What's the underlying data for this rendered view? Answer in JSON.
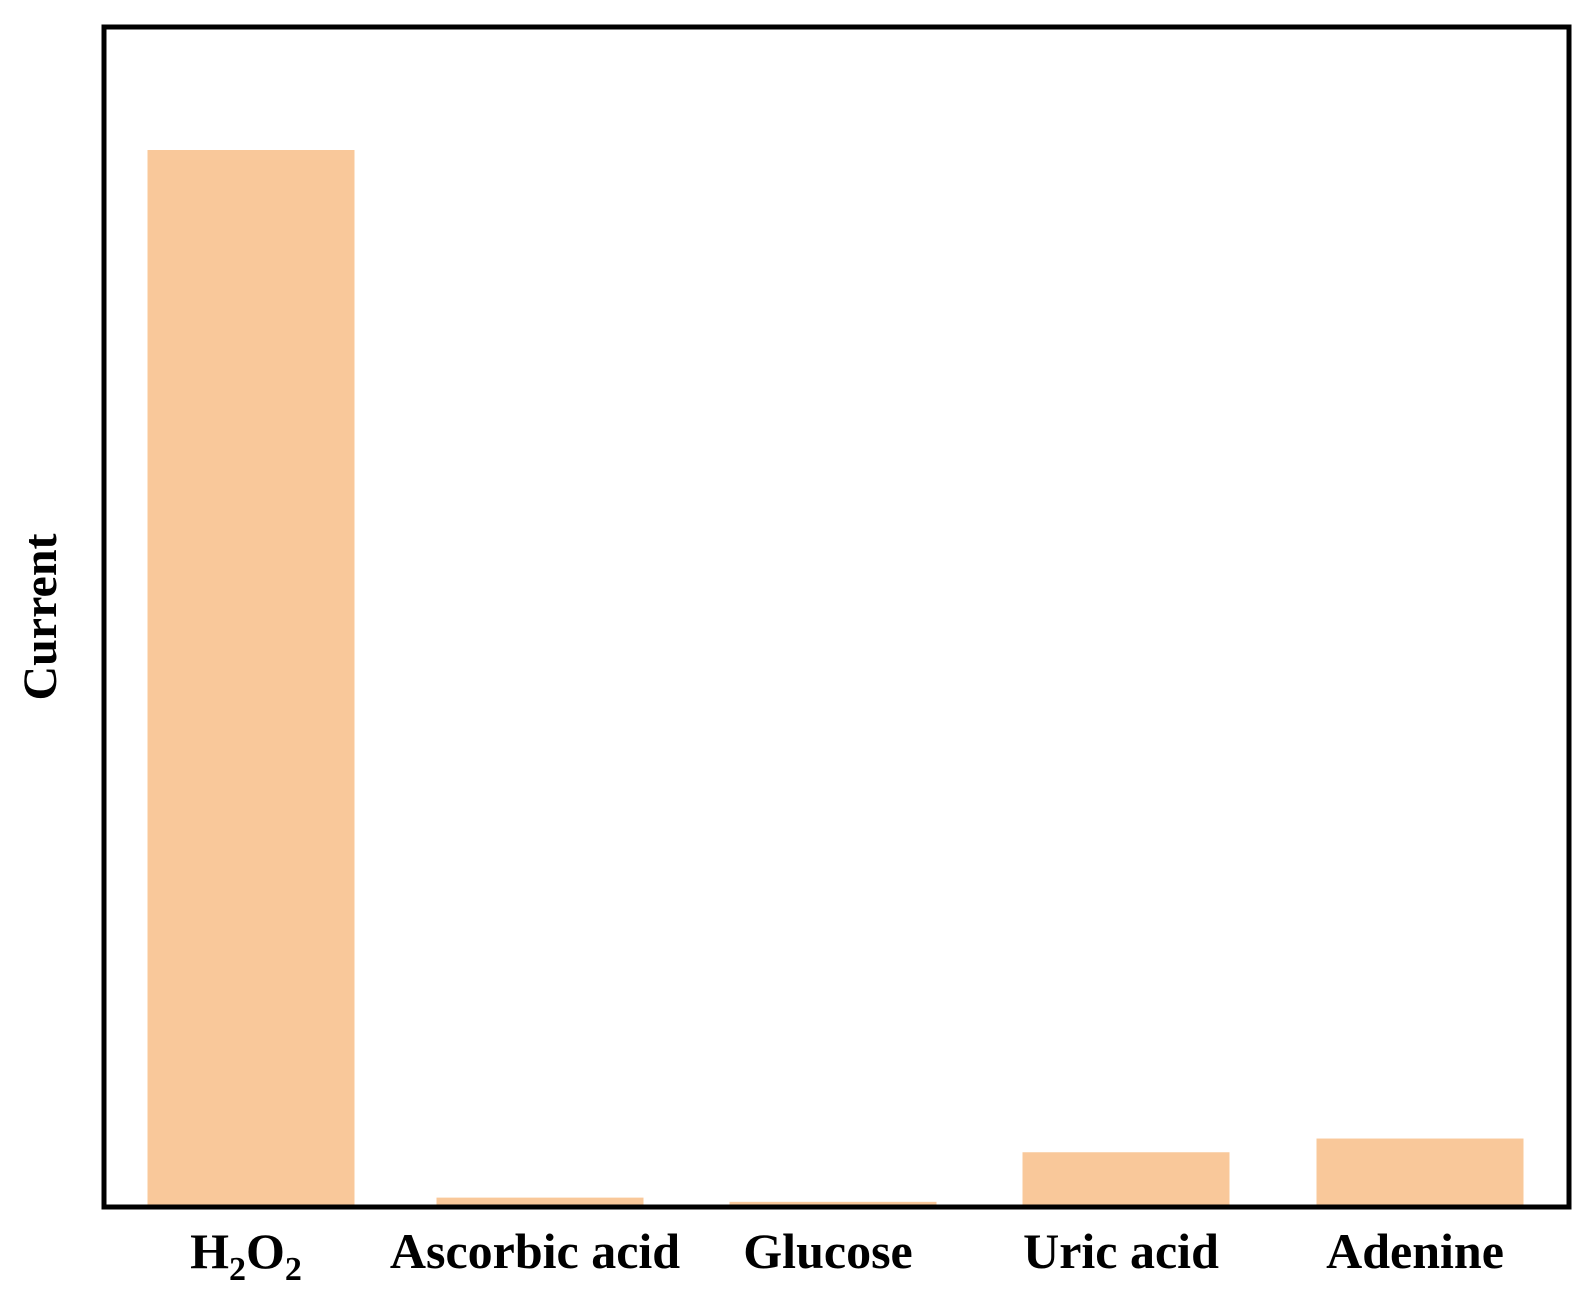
{
  "chart_data": {
    "type": "bar",
    "title": "",
    "xlabel": "",
    "ylabel": "Current",
    "categories": [
      "H2O2",
      "Ascorbic acid",
      "Glucose",
      "Uric acid",
      "Adenine"
    ],
    "category_labels": [
      {
        "main": "H",
        "sub1": "2",
        "mid": "O",
        "sub2": "2"
      },
      {
        "main": "Ascorbic acid"
      },
      {
        "main": "Glucose"
      },
      {
        "main": "Uric acid"
      },
      {
        "main": "Adenine"
      }
    ],
    "values": [
      100,
      0.7,
      0.3,
      5.0,
      6.3
    ],
    "ylim": [
      0,
      112
    ],
    "y_ticks_shown": false,
    "grid": false,
    "legend": "none",
    "colors": {
      "bar": "#F9C89A",
      "frame": "#000000"
    }
  }
}
